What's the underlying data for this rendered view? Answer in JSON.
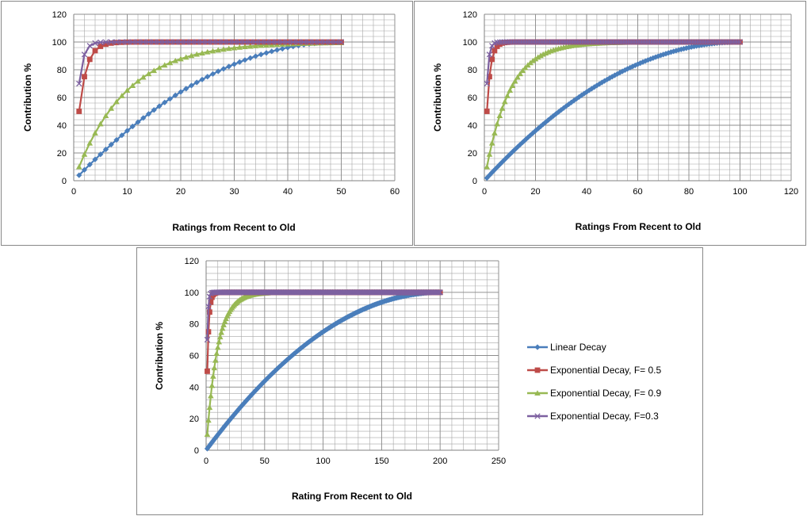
{
  "colors": {
    "linear": "#4a7ebb",
    "exp05": "#be4b48",
    "exp09": "#98b954",
    "exp03": "#7d60a0",
    "grid": "#a6a6a6"
  },
  "legend": {
    "entries": [
      {
        "label": "Linear Decay",
        "series": "linear",
        "marker": "diamond"
      },
      {
        "label": "Exponential Decay, F= 0.5",
        "series": "exp05",
        "marker": "square"
      },
      {
        "label": "Exponential Decay, F= 0.9",
        "series": "exp09",
        "marker": "triangle"
      },
      {
        "label": "Exponential Decay, F=0.3",
        "series": "exp03",
        "marker": "x"
      }
    ]
  },
  "chart_data": [
    {
      "type": "line",
      "n": 50,
      "xlabel": "Ratings from Recent to Old",
      "ylabel": "Contribution %",
      "xlim": [
        0,
        60
      ],
      "ylim": [
        0,
        120
      ],
      "xticks": [
        0,
        10,
        20,
        30,
        40,
        50,
        60
      ],
      "yticks": [
        0,
        20,
        40,
        60,
        80,
        100,
        120
      ],
      "grid": true,
      "series": [
        {
          "key": "linear",
          "description": "Linear Decay",
          "x_range": [
            1,
            50
          ],
          "formula": "y = 100*(1-((n-x)/n)^2)"
        },
        {
          "key": "exp05",
          "description": "Exponential Decay, F= 0.5",
          "x_range": [
            1,
            50
          ],
          "formula": "y = 100*(1-0.5^x)"
        },
        {
          "key": "exp09",
          "description": "Exponential Decay, F= 0.9",
          "x_range": [
            1,
            50
          ],
          "formula": "y = 100*(1-0.9^x)"
        },
        {
          "key": "exp03",
          "description": "Exponential Decay, F=0.3",
          "x_range": [
            1,
            50
          ],
          "formula": "y = 100*(1-0.3^x)"
        }
      ],
      "sample_values": {
        "linear_at_10": 36,
        "linear_at_25": 75,
        "exp05_at_1": 50,
        "exp05_at_2": 75,
        "exp09_at_10": 65,
        "exp03_at_1": 70
      }
    },
    {
      "type": "line",
      "n": 100,
      "xlabel": "Ratings From Recent to Old",
      "ylabel": "Contribution %",
      "xlim": [
        0,
        120
      ],
      "ylim": [
        0,
        120
      ],
      "xticks": [
        0,
        20,
        40,
        60,
        80,
        100,
        120
      ],
      "yticks": [
        0,
        20,
        40,
        60,
        80,
        100,
        120
      ],
      "grid": true,
      "series": [
        {
          "key": "linear",
          "description": "Linear Decay",
          "x_range": [
            1,
            100
          ],
          "formula": "y = 100*(1-((n-x)/n)^2)"
        },
        {
          "key": "exp05",
          "description": "Exponential Decay, F= 0.5",
          "x_range": [
            1,
            100
          ],
          "formula": "y = 100*(1-0.5^x)"
        },
        {
          "key": "exp09",
          "description": "Exponential Decay, F= 0.9",
          "x_range": [
            1,
            100
          ],
          "formula": "y = 100*(1-0.9^x)"
        },
        {
          "key": "exp03",
          "description": "Exponential Decay, F=0.3",
          "x_range": [
            1,
            100
          ],
          "formula": "y = 100*(1-0.3^x)"
        }
      ],
      "sample_values": {
        "linear_at_40": 64,
        "linear_at_60": 84
      }
    },
    {
      "type": "line",
      "n": 200,
      "xlabel": "Rating From Recent to Old",
      "ylabel": "Contribution %",
      "xlim": [
        0,
        250
      ],
      "ylim": [
        0,
        120
      ],
      "xticks": [
        0,
        50,
        100,
        150,
        200,
        250
      ],
      "yticks": [
        0,
        20,
        40,
        60,
        80,
        100,
        120
      ],
      "grid": true,
      "legend": "right",
      "series": [
        {
          "key": "linear",
          "description": "Linear Decay",
          "x_range": [
            1,
            200
          ],
          "formula": "y = 100*(1-((n-x)/n)^2)"
        },
        {
          "key": "exp05",
          "description": "Exponential Decay, F= 0.5",
          "x_range": [
            1,
            200
          ],
          "formula": "y = 100*(1-0.5^x)"
        },
        {
          "key": "exp09",
          "description": "Exponential Decay, F= 0.9",
          "x_range": [
            1,
            200
          ],
          "formula": "y = 100*(1-0.9^x)"
        },
        {
          "key": "exp03",
          "description": "Exponential Decay, F=0.3",
          "x_range": [
            1,
            200
          ],
          "formula": "y = 100*(1-0.3^x)"
        }
      ],
      "sample_values": {
        "linear_at_50": 44,
        "linear_at_100": 75,
        "linear_at_150": 94
      }
    }
  ]
}
